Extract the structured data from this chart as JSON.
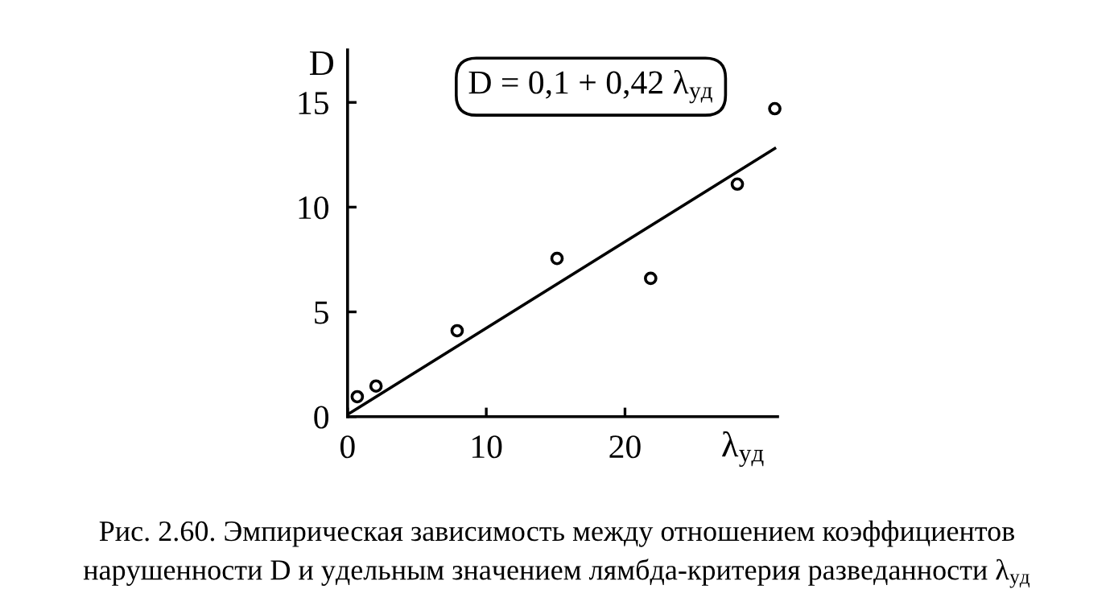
{
  "chart_data": {
    "type": "scatter",
    "xlabel": "λ$_{уд}$",
    "ylabel": "D",
    "annotations": [
      "D = 0,1 + 0,42 λ$_{уд}$",
      "Рис. 2.60. Эмпирическая зависимость между отношением коэффициентов",
      "нарушенности D и удельным значением лямбда-критерия разведанности λ$_{уд}$"
    ],
    "series": [
      {
        "x": [
          0.7,
          2.05,
          7.9,
          15.1,
          21.85,
          28.1,
          30.8
        ],
        "values": [
          0.95,
          1.46,
          4.1,
          7.55,
          6.6,
          11.1,
          14.7
        ],
        "color": "#000000",
        "marker": "circle"
      },
      {
        "type": "line",
        "x": [
          0,
          30.8
        ],
        "values": [
          0.1,
          12.8
        ],
        "color": "#000000",
        "marker": "none",
        "line_style": "solid"
      }
    ],
    "xlim": [
      0,
      31
    ],
    "ylim": [
      0,
      17.5
    ],
    "xticks": [
      0,
      10,
      20
    ],
    "yticks": [
      0,
      5,
      10,
      15
    ],
    "grid": false,
    "legend": false
  }
}
